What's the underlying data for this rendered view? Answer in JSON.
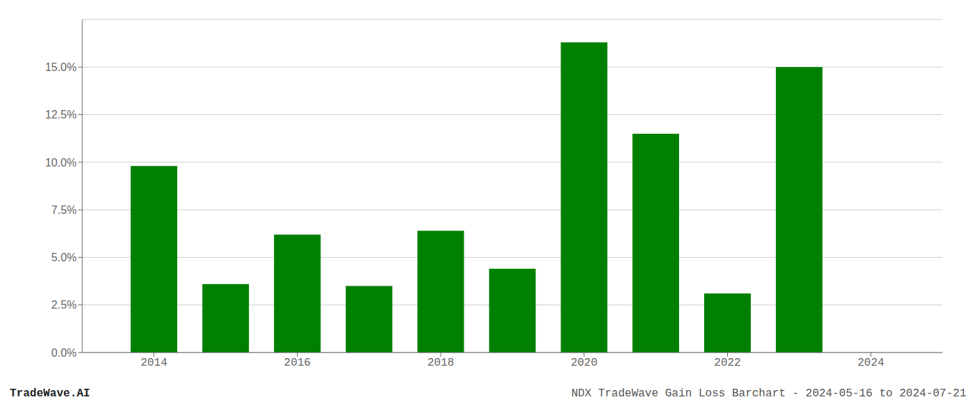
{
  "chart_data": {
    "type": "bar",
    "x": [
      2014,
      2015,
      2016,
      2017,
      2018,
      2019,
      2020,
      2021,
      2022,
      2023
    ],
    "values": [
      0.098,
      0.036,
      0.062,
      0.035,
      0.064,
      0.044,
      0.163,
      0.115,
      0.031,
      0.15
    ],
    "color": "#008000",
    "xlim": [
      2013.0,
      2025.0
    ],
    "xticks": [
      2014,
      2016,
      2018,
      2020,
      2022,
      2024
    ],
    "ylim": [
      0,
      0.175
    ],
    "yticks": [
      {
        "value": 0.0,
        "label": "0.0%"
      },
      {
        "value": 0.025,
        "label": "2.5%"
      },
      {
        "value": 0.05,
        "label": "5.0%"
      },
      {
        "value": 0.075,
        "label": "7.5%"
      },
      {
        "value": 0.1,
        "label": "10.0%"
      },
      {
        "value": 0.125,
        "label": "12.5%"
      },
      {
        "value": 0.15,
        "label": "15.0%"
      }
    ],
    "grid": "y",
    "annotations": [
      "TradeWave.AI",
      "NDX TradeWave Gain Loss Barchart - 2024-05-16 to 2024-07-21"
    ]
  }
}
